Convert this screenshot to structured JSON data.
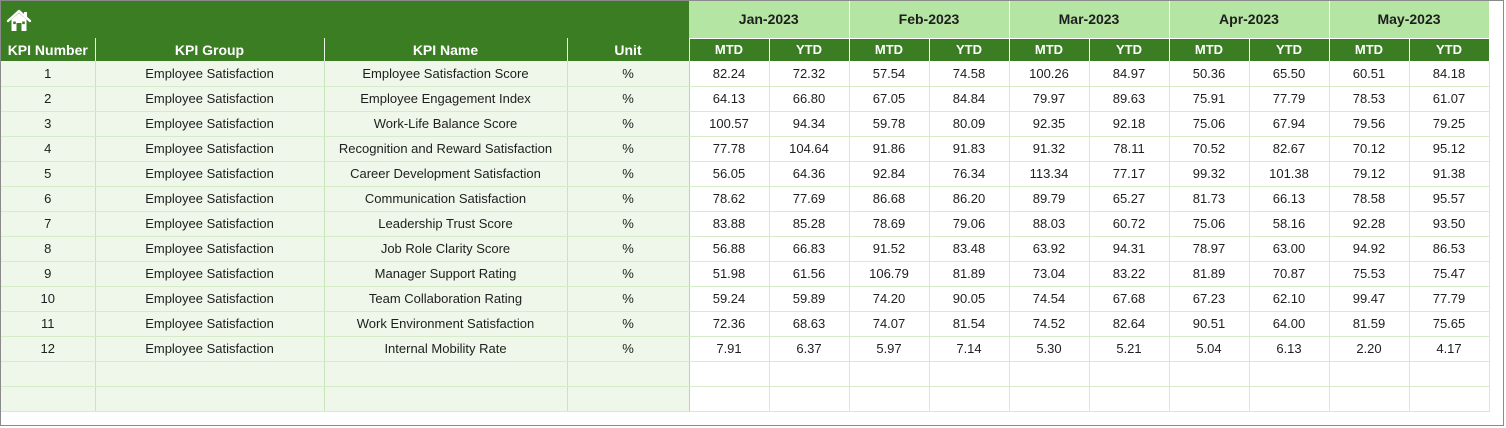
{
  "sheet": {
    "home_icon": "home-icon",
    "colors": {
      "banner": "#3a7d22",
      "month_header": "#b4e5a2",
      "left_fill": "#eef7e9",
      "gridline": "#d6ecc9"
    },
    "headers": {
      "kpi_number": "KPI Number",
      "kpi_group": "KPI Group",
      "kpi_name": "KPI Name",
      "unit": "Unit"
    },
    "months": [
      {
        "label": "Jan-2023",
        "mtd": "MTD",
        "ytd": "YTD"
      },
      {
        "label": "Feb-2023",
        "mtd": "MTD",
        "ytd": "YTD"
      },
      {
        "label": "Mar-2023",
        "mtd": "MTD",
        "ytd": "YTD"
      },
      {
        "label": "Apr-2023",
        "mtd": "MTD",
        "ytd": "YTD"
      },
      {
        "label": "May-2023",
        "mtd": "MTD",
        "ytd": "YTD"
      }
    ],
    "rows": [
      {
        "num": "1",
        "group": "Employee Satisfaction",
        "name": "Employee Satisfaction Score",
        "unit": "%",
        "values": [
          "82.24",
          "72.32",
          "57.54",
          "74.58",
          "100.26",
          "84.97",
          "50.36",
          "65.50",
          "60.51",
          "84.18"
        ]
      },
      {
        "num": "2",
        "group": "Employee Satisfaction",
        "name": "Employee Engagement Index",
        "unit": "%",
        "values": [
          "64.13",
          "66.80",
          "67.05",
          "84.84",
          "79.97",
          "89.63",
          "75.91",
          "77.79",
          "78.53",
          "61.07"
        ]
      },
      {
        "num": "3",
        "group": "Employee Satisfaction",
        "name": "Work-Life Balance Score",
        "unit": "%",
        "values": [
          "100.57",
          "94.34",
          "59.78",
          "80.09",
          "92.35",
          "92.18",
          "75.06",
          "67.94",
          "79.56",
          "79.25"
        ]
      },
      {
        "num": "4",
        "group": "Employee Satisfaction",
        "name": "Recognition and Reward Satisfaction",
        "unit": "%",
        "values": [
          "77.78",
          "104.64",
          "91.86",
          "91.83",
          "91.32",
          "78.11",
          "70.52",
          "82.67",
          "70.12",
          "95.12"
        ]
      },
      {
        "num": "5",
        "group": "Employee Satisfaction",
        "name": "Career Development Satisfaction",
        "unit": "%",
        "values": [
          "56.05",
          "64.36",
          "92.84",
          "76.34",
          "113.34",
          "77.17",
          "99.32",
          "101.38",
          "79.12",
          "91.38"
        ]
      },
      {
        "num": "6",
        "group": "Employee Satisfaction",
        "name": "Communication Satisfaction",
        "unit": "%",
        "values": [
          "78.62",
          "77.69",
          "86.68",
          "86.20",
          "89.79",
          "65.27",
          "81.73",
          "66.13",
          "78.58",
          "95.57"
        ]
      },
      {
        "num": "7",
        "group": "Employee Satisfaction",
        "name": "Leadership Trust Score",
        "unit": "%",
        "values": [
          "83.88",
          "85.28",
          "78.69",
          "79.06",
          "88.03",
          "60.72",
          "75.06",
          "58.16",
          "92.28",
          "93.50"
        ]
      },
      {
        "num": "8",
        "group": "Employee Satisfaction",
        "name": "Job Role Clarity Score",
        "unit": "%",
        "values": [
          "56.88",
          "66.83",
          "91.52",
          "83.48",
          "63.92",
          "94.31",
          "78.97",
          "63.00",
          "94.92",
          "86.53"
        ]
      },
      {
        "num": "9",
        "group": "Employee Satisfaction",
        "name": "Manager Support Rating",
        "unit": "%",
        "values": [
          "51.98",
          "61.56",
          "106.79",
          "81.89",
          "73.04",
          "83.22",
          "81.89",
          "70.87",
          "75.53",
          "75.47"
        ]
      },
      {
        "num": "10",
        "group": "Employee Satisfaction",
        "name": "Team Collaboration Rating",
        "unit": "%",
        "values": [
          "59.24",
          "59.89",
          "74.20",
          "90.05",
          "74.54",
          "67.68",
          "67.23",
          "62.10",
          "99.47",
          "77.79"
        ]
      },
      {
        "num": "11",
        "group": "Employee Satisfaction",
        "name": "Work Environment Satisfaction",
        "unit": "%",
        "values": [
          "72.36",
          "68.63",
          "74.07",
          "81.54",
          "74.52",
          "82.64",
          "90.51",
          "64.00",
          "81.59",
          "75.65"
        ]
      },
      {
        "num": "12",
        "group": "Employee Satisfaction",
        "name": "Internal Mobility Rate",
        "unit": "%",
        "values": [
          "7.91",
          "6.37",
          "5.97",
          "7.14",
          "5.30",
          "5.21",
          "5.04",
          "6.13",
          "2.20",
          "4.17"
        ]
      },
      {
        "num": "",
        "group": "",
        "name": "",
        "unit": "",
        "values": [
          "",
          "",
          "",
          "",
          "",
          "",
          "",
          "",
          "",
          ""
        ]
      },
      {
        "num": "",
        "group": "",
        "name": "",
        "unit": "",
        "values": [
          "",
          "",
          "",
          "",
          "",
          "",
          "",
          "",
          "",
          ""
        ]
      }
    ]
  }
}
